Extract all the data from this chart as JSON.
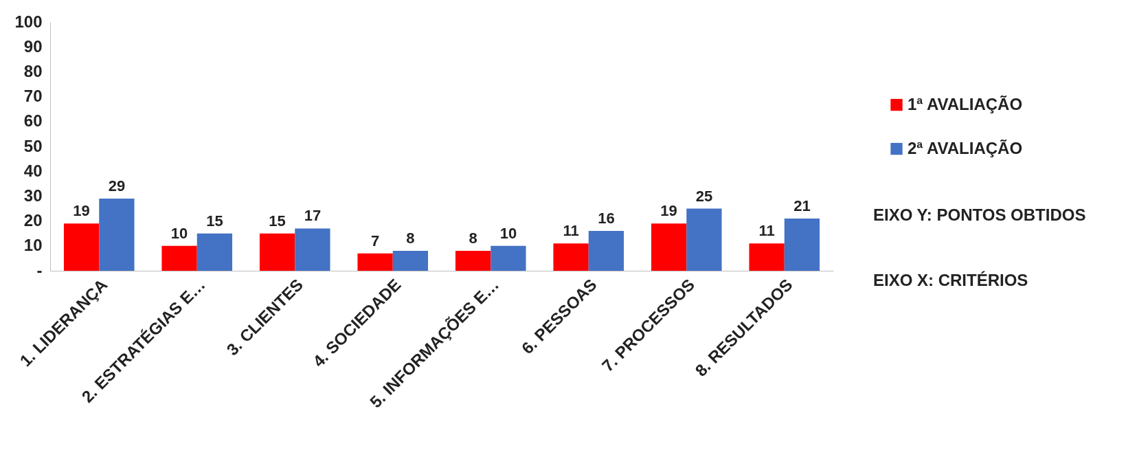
{
  "chart_data": {
    "type": "bar",
    "categories": [
      "1. LIDERANÇA",
      "2. ESTRATÉGIAS E…",
      "3. CLIENTES",
      "4. SOCIEDADE",
      "5. INFORMAÇÕES E…",
      "6. PESSOAS",
      "7. PROCESSOS",
      "8. RESULTADOS"
    ],
    "series": [
      {
        "name": "1ª AVALIAÇÃO",
        "color": "#ff0000",
        "values": [
          19,
          10,
          15,
          7,
          8,
          11,
          19,
          11
        ]
      },
      {
        "name": "2ª AVALIAÇÃO",
        "color": "#4472c4",
        "values": [
          29,
          15,
          17,
          8,
          10,
          16,
          25,
          21
        ]
      }
    ],
    "ylim": [
      0,
      100
    ],
    "yticks": [
      {
        "value": 0,
        "label": "-"
      },
      10,
      20,
      30,
      40,
      50,
      60,
      70,
      80,
      90,
      100
    ],
    "data_labels": true,
    "grid": false,
    "legend": "right",
    "annotations": [
      "EIXO Y: PONTOS OBTIDOS",
      "EIXO X: CRITÉRIOS"
    ]
  }
}
